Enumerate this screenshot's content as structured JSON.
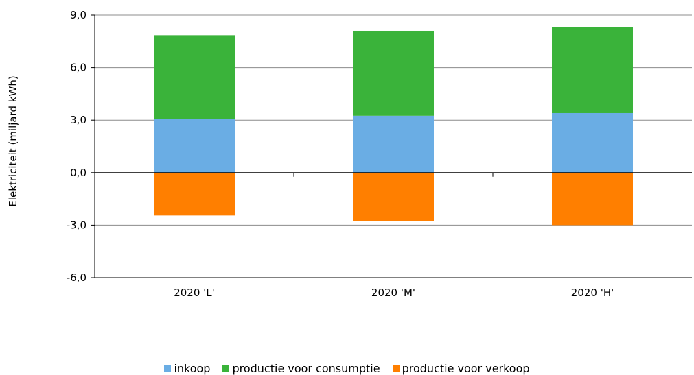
{
  "chart_data": {
    "type": "bar",
    "stacked": true,
    "title": "",
    "xlabel": "",
    "ylabel": "Elektriciteit (miljard kWh)",
    "ylim": [
      -6,
      9
    ],
    "yticks": [
      "9,0",
      "6,0",
      "3,0",
      "0,0",
      "-3,0",
      "-6,0"
    ],
    "ytick_values": [
      9,
      6,
      3,
      0,
      -3,
      -6
    ],
    "categories": [
      "2020 'L'",
      "2020 'M'",
      "2020 'H'"
    ],
    "series": [
      {
        "name": "inkoop",
        "color": "#6aade4",
        "values": [
          3.05,
          3.25,
          3.4
        ]
      },
      {
        "name": "productie voor consumptie",
        "color": "#3ab33a",
        "values": [
          4.8,
          4.85,
          4.9
        ]
      },
      {
        "name": "productie voor verkoop",
        "color": "#ff7f00",
        "values": [
          -2.45,
          -2.75,
          -3.0
        ]
      }
    ],
    "grid": true,
    "legend": "bottom"
  }
}
